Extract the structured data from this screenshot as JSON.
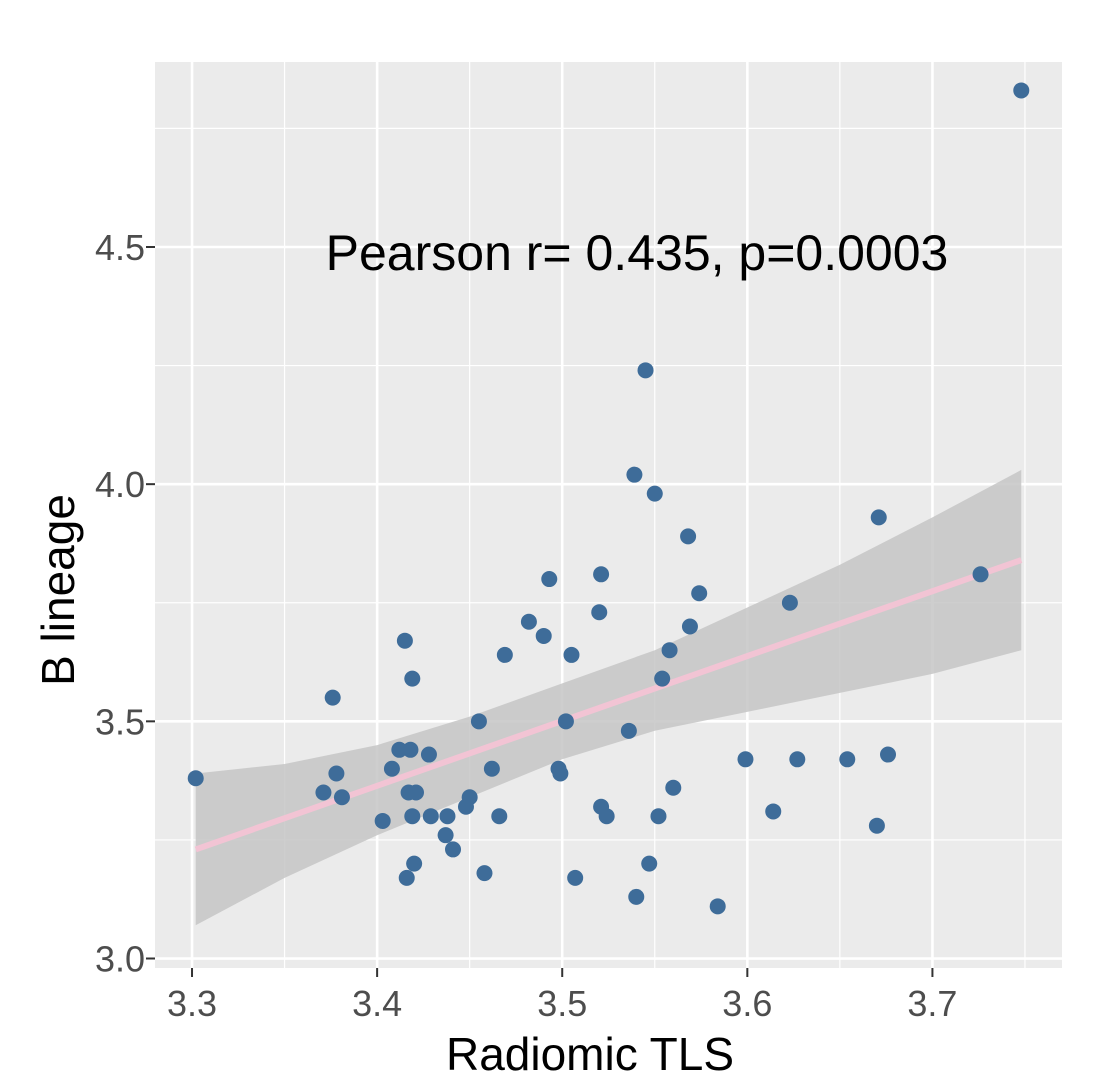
{
  "chart_data": {
    "type": "scatter",
    "xlabel": "Radiomic TLS",
    "ylabel": "B lineage",
    "annotation": "Pearson r= 0.435, p=0.0003",
    "xlim": [
      3.28,
      3.77
    ],
    "ylim": [
      2.98,
      4.89
    ],
    "x_ticks": [
      "3.3",
      "3.4",
      "3.5",
      "3.6",
      "3.7"
    ],
    "y_ticks": [
      "3.0",
      "3.5",
      "4.0",
      "4.5"
    ],
    "grid": true,
    "panel_background": "#ebebeb",
    "grid_color": "#ffffff",
    "point_color": "#3e6c99",
    "fit_line_color": "#f2c4d4",
    "confidence_band_color": "#c6c6c6",
    "fit": {
      "x_range": [
        3.302,
        3.748
      ],
      "y_start": 3.23,
      "y_end": 3.84,
      "band_x": [
        3.302,
        3.35,
        3.4,
        3.45,
        3.5,
        3.55,
        3.6,
        3.65,
        3.7,
        3.748
      ],
      "band_lower": [
        3.07,
        3.17,
        3.26,
        3.34,
        3.42,
        3.48,
        3.52,
        3.56,
        3.6,
        3.65
      ],
      "band_upper": [
        3.39,
        3.41,
        3.45,
        3.51,
        3.58,
        3.65,
        3.74,
        3.83,
        3.93,
        4.03
      ]
    },
    "points": [
      {
        "x": 3.302,
        "y": 3.38
      },
      {
        "x": 3.371,
        "y": 3.35
      },
      {
        "x": 3.376,
        "y": 3.55
      },
      {
        "x": 3.378,
        "y": 3.39
      },
      {
        "x": 3.381,
        "y": 3.34
      },
      {
        "x": 3.403,
        "y": 3.29
      },
      {
        "x": 3.408,
        "y": 3.4
      },
      {
        "x": 3.412,
        "y": 3.44
      },
      {
        "x": 3.415,
        "y": 3.67
      },
      {
        "x": 3.416,
        "y": 3.17
      },
      {
        "x": 3.417,
        "y": 3.35
      },
      {
        "x": 3.418,
        "y": 3.44
      },
      {
        "x": 3.419,
        "y": 3.3
      },
      {
        "x": 3.419,
        "y": 3.59
      },
      {
        "x": 3.42,
        "y": 3.2
      },
      {
        "x": 3.421,
        "y": 3.35
      },
      {
        "x": 3.428,
        "y": 3.43
      },
      {
        "x": 3.429,
        "y": 3.3
      },
      {
        "x": 3.437,
        "y": 3.26
      },
      {
        "x": 3.438,
        "y": 3.3
      },
      {
        "x": 3.441,
        "y": 3.23
      },
      {
        "x": 3.448,
        "y": 3.32
      },
      {
        "x": 3.45,
        "y": 3.34
      },
      {
        "x": 3.455,
        "y": 3.5
      },
      {
        "x": 3.458,
        "y": 3.18
      },
      {
        "x": 3.462,
        "y": 3.4
      },
      {
        "x": 3.466,
        "y": 3.3
      },
      {
        "x": 3.469,
        "y": 3.64
      },
      {
        "x": 3.482,
        "y": 3.71
      },
      {
        "x": 3.49,
        "y": 3.68
      },
      {
        "x": 3.493,
        "y": 3.8
      },
      {
        "x": 3.498,
        "y": 3.4
      },
      {
        "x": 3.499,
        "y": 3.39
      },
      {
        "x": 3.502,
        "y": 3.5
      },
      {
        "x": 3.505,
        "y": 3.64
      },
      {
        "x": 3.507,
        "y": 3.17
      },
      {
        "x": 3.52,
        "y": 3.73
      },
      {
        "x": 3.521,
        "y": 3.81
      },
      {
        "x": 3.521,
        "y": 3.32
      },
      {
        "x": 3.524,
        "y": 3.3
      },
      {
        "x": 3.536,
        "y": 3.48
      },
      {
        "x": 3.539,
        "y": 4.02
      },
      {
        "x": 3.54,
        "y": 3.13
      },
      {
        "x": 3.545,
        "y": 4.24
      },
      {
        "x": 3.547,
        "y": 3.2
      },
      {
        "x": 3.55,
        "y": 3.98
      },
      {
        "x": 3.552,
        "y": 3.3
      },
      {
        "x": 3.554,
        "y": 3.59
      },
      {
        "x": 3.558,
        "y": 3.65
      },
      {
        "x": 3.56,
        "y": 3.36
      },
      {
        "x": 3.568,
        "y": 3.89
      },
      {
        "x": 3.569,
        "y": 3.7
      },
      {
        "x": 3.574,
        "y": 3.77
      },
      {
        "x": 3.584,
        "y": 3.11
      },
      {
        "x": 3.599,
        "y": 3.42
      },
      {
        "x": 3.614,
        "y": 3.31
      },
      {
        "x": 3.623,
        "y": 3.75
      },
      {
        "x": 3.627,
        "y": 3.42
      },
      {
        "x": 3.654,
        "y": 3.42
      },
      {
        "x": 3.67,
        "y": 3.28
      },
      {
        "x": 3.671,
        "y": 3.93
      },
      {
        "x": 3.676,
        "y": 3.43
      },
      {
        "x": 3.726,
        "y": 3.81
      },
      {
        "x": 3.748,
        "y": 4.83
      }
    ]
  }
}
